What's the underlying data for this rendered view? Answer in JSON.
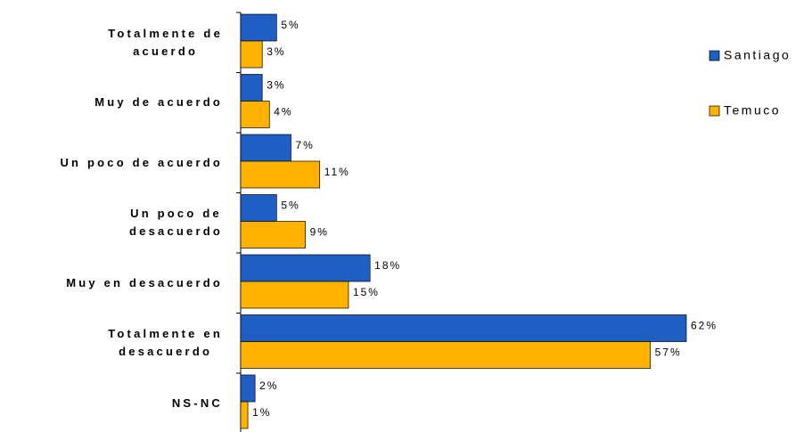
{
  "chart_data": {
    "type": "bar",
    "orientation": "horizontal",
    "categories": [
      "Totalmente de\nacuerdo",
      "Muy de acuerdo",
      "Un poco de acuerdo",
      "Un poco de\ndesacuerdo",
      "Muy en desacuerdo",
      "Totalmente en\ndesacuerdo",
      "NS-NC"
    ],
    "series": [
      {
        "name": "Santiago",
        "color": "#1f5fc4",
        "values": [
          5,
          3,
          7,
          5,
          18,
          62,
          2
        ],
        "value_labels": [
          "5%",
          "3%",
          "7%",
          "5%",
          "18%",
          "62%",
          "2%"
        ]
      },
      {
        "name": "Temuco",
        "color": "#ffb300",
        "values": [
          3,
          4,
          11,
          9,
          15,
          57,
          1
        ],
        "value_labels": [
          "3%",
          "4%",
          "11%",
          "9%",
          "15%",
          "57%",
          "1%"
        ]
      }
    ],
    "xlim": [
      0,
      62
    ],
    "legend": "right"
  }
}
